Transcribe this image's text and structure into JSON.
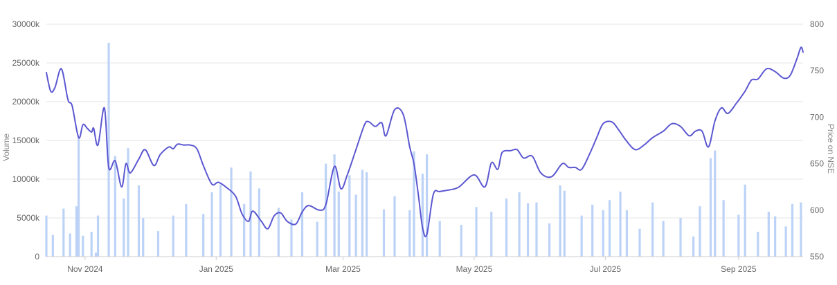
{
  "chart_data": {
    "type": "bar+line",
    "left_axis": {
      "label": "Volume",
      "ticks": [
        "0",
        "5000k",
        "10000k",
        "15000k",
        "20000k",
        "25000k",
        "30000k"
      ],
      "tick_values": [
        0,
        5000,
        10000,
        15000,
        20000,
        25000,
        30000
      ],
      "range": [
        0,
        30000
      ],
      "unit": "k"
    },
    "right_axis": {
      "label": "Price on NSE",
      "ticks": [
        "550",
        "600",
        "650",
        "700",
        "750",
        "800"
      ],
      "tick_values": [
        550,
        600,
        650,
        700,
        750,
        800
      ],
      "range": [
        550,
        800
      ]
    },
    "x_axis": {
      "tick_labels": [
        "Nov 2024",
        "Jan 2025",
        "Mar 2025",
        "May 2025",
        "Jul 2025",
        "Sep 2025"
      ],
      "tick_dates": [
        "2024-11-01",
        "2025-01-01",
        "2025-03-01",
        "2025-05-01",
        "2025-07-01",
        "2025-09-01"
      ],
      "start": "2024-10-14",
      "end": "2025-10-01"
    },
    "grid": "horizontal",
    "legend": "none",
    "colors": {
      "volume_bars": "#bcd3f7",
      "price_line": "#5b57d1",
      "grid": "#e6e6e6"
    },
    "series": [
      {
        "name": "Volume",
        "kind": "bar",
        "axis": "left",
        "points": [
          {
            "date": "2024-10-14",
            "value": 5300
          },
          {
            "date": "2024-10-17",
            "value": 2800
          },
          {
            "date": "2024-10-22",
            "value": 6200
          },
          {
            "date": "2024-10-25",
            "value": 3000
          },
          {
            "date": "2024-10-28",
            "value": 6500
          },
          {
            "date": "2024-10-29",
            "value": 15300
          },
          {
            "date": "2024-10-31",
            "value": 2700
          },
          {
            "date": "2024-11-04",
            "value": 3200
          },
          {
            "date": "2024-11-06",
            "value": 500
          },
          {
            "date": "2024-11-07",
            "value": 5300
          },
          {
            "date": "2024-11-12",
            "value": 27600
          },
          {
            "date": "2024-11-15",
            "value": 13000
          },
          {
            "date": "2024-11-19",
            "value": 7500
          },
          {
            "date": "2024-11-21",
            "value": 14000
          },
          {
            "date": "2024-11-26",
            "value": 9200
          },
          {
            "date": "2024-11-28",
            "value": 5000
          },
          {
            "date": "2024-12-05",
            "value": 3300
          },
          {
            "date": "2024-12-12",
            "value": 5300
          },
          {
            "date": "2024-12-18",
            "value": 6800
          },
          {
            "date": "2024-12-26",
            "value": 5500
          },
          {
            "date": "2024-12-30",
            "value": 8300
          },
          {
            "date": "2025-01-03",
            "value": 9300
          },
          {
            "date": "2025-01-08",
            "value": 11500
          },
          {
            "date": "2025-01-14",
            "value": 6800
          },
          {
            "date": "2025-01-17",
            "value": 11000
          },
          {
            "date": "2025-01-21",
            "value": 8800
          },
          {
            "date": "2025-01-30",
            "value": 6300
          },
          {
            "date": "2025-02-05",
            "value": 4800
          },
          {
            "date": "2025-02-10",
            "value": 8300
          },
          {
            "date": "2025-02-17",
            "value": 4500
          },
          {
            "date": "2025-02-21",
            "value": 12000
          },
          {
            "date": "2025-02-25",
            "value": 13200
          },
          {
            "date": "2025-02-27",
            "value": 8400
          },
          {
            "date": "2025-03-04",
            "value": 10500
          },
          {
            "date": "2025-03-07",
            "value": 8000
          },
          {
            "date": "2025-03-10",
            "value": 11200
          },
          {
            "date": "2025-03-12",
            "value": 10900
          },
          {
            "date": "2025-03-20",
            "value": 6100
          },
          {
            "date": "2025-03-25",
            "value": 7800
          },
          {
            "date": "2025-04-01",
            "value": 6000
          },
          {
            "date": "2025-04-03",
            "value": 13600
          },
          {
            "date": "2025-04-07",
            "value": 10700
          },
          {
            "date": "2025-04-09",
            "value": 13200
          },
          {
            "date": "2025-04-15",
            "value": 4600
          },
          {
            "date": "2025-04-25",
            "value": 4100
          },
          {
            "date": "2025-05-02",
            "value": 6400
          },
          {
            "date": "2025-05-09",
            "value": 5800
          },
          {
            "date": "2025-05-16",
            "value": 7500
          },
          {
            "date": "2025-05-22",
            "value": 8300
          },
          {
            "date": "2025-05-26",
            "value": 6900
          },
          {
            "date": "2025-05-30",
            "value": 7000
          },
          {
            "date": "2025-06-05",
            "value": 4300
          },
          {
            "date": "2025-06-10",
            "value": 9200
          },
          {
            "date": "2025-06-12",
            "value": 8500
          },
          {
            "date": "2025-06-20",
            "value": 5300
          },
          {
            "date": "2025-06-25",
            "value": 6700
          },
          {
            "date": "2025-06-30",
            "value": 6000
          },
          {
            "date": "2025-07-03",
            "value": 7300
          },
          {
            "date": "2025-07-08",
            "value": 8400
          },
          {
            "date": "2025-07-11",
            "value": 6000
          },
          {
            "date": "2025-07-17",
            "value": 3600
          },
          {
            "date": "2025-07-23",
            "value": 7000
          },
          {
            "date": "2025-07-28",
            "value": 4600
          },
          {
            "date": "2025-08-05",
            "value": 5000
          },
          {
            "date": "2025-08-11",
            "value": 2600
          },
          {
            "date": "2025-08-14",
            "value": 6500
          },
          {
            "date": "2025-08-19",
            "value": 12700
          },
          {
            "date": "2025-08-21",
            "value": 13700
          },
          {
            "date": "2025-08-25",
            "value": 7300
          },
          {
            "date": "2025-09-01",
            "value": 5400
          },
          {
            "date": "2025-09-04",
            "value": 9300
          },
          {
            "date": "2025-09-10",
            "value": 3200
          },
          {
            "date": "2025-09-15",
            "value": 5800
          },
          {
            "date": "2025-09-18",
            "value": 5200
          },
          {
            "date": "2025-09-23",
            "value": 3900
          },
          {
            "date": "2025-09-26",
            "value": 6800
          },
          {
            "date": "2025-09-30",
            "value": 7000
          }
        ]
      },
      {
        "name": "Price on NSE",
        "kind": "line",
        "axis": "right",
        "points": [
          {
            "date": "2024-10-14",
            "value": 748
          },
          {
            "date": "2024-10-16",
            "value": 728
          },
          {
            "date": "2024-10-18",
            "value": 732
          },
          {
            "date": "2024-10-21",
            "value": 752
          },
          {
            "date": "2024-10-24",
            "value": 719
          },
          {
            "date": "2024-10-26",
            "value": 712
          },
          {
            "date": "2024-10-29",
            "value": 678
          },
          {
            "date": "2024-10-31",
            "value": 692
          },
          {
            "date": "2024-11-02",
            "value": 688
          },
          {
            "date": "2024-11-04",
            "value": 684
          },
          {
            "date": "2024-11-05",
            "value": 688
          },
          {
            "date": "2024-11-07",
            "value": 670
          },
          {
            "date": "2024-11-10",
            "value": 710
          },
          {
            "date": "2024-11-12",
            "value": 646
          },
          {
            "date": "2024-11-15",
            "value": 653
          },
          {
            "date": "2024-11-18",
            "value": 625
          },
          {
            "date": "2024-11-20",
            "value": 650
          },
          {
            "date": "2024-11-22",
            "value": 640
          },
          {
            "date": "2024-11-26",
            "value": 655
          },
          {
            "date": "2024-11-29",
            "value": 665
          },
          {
            "date": "2024-12-03",
            "value": 648
          },
          {
            "date": "2024-12-06",
            "value": 660
          },
          {
            "date": "2024-12-10",
            "value": 668
          },
          {
            "date": "2024-12-12",
            "value": 666
          },
          {
            "date": "2024-12-14",
            "value": 671
          },
          {
            "date": "2024-12-17",
            "value": 670
          },
          {
            "date": "2024-12-20",
            "value": 670
          },
          {
            "date": "2024-12-23",
            "value": 666
          },
          {
            "date": "2024-12-26",
            "value": 648
          },
          {
            "date": "2024-12-30",
            "value": 628
          },
          {
            "date": "2025-01-02",
            "value": 630
          },
          {
            "date": "2025-01-06",
            "value": 624
          },
          {
            "date": "2025-01-10",
            "value": 615
          },
          {
            "date": "2025-01-13",
            "value": 596
          },
          {
            "date": "2025-01-16",
            "value": 588
          },
          {
            "date": "2025-01-18",
            "value": 599
          },
          {
            "date": "2025-01-22",
            "value": 588
          },
          {
            "date": "2025-01-25",
            "value": 580
          },
          {
            "date": "2025-01-28",
            "value": 594
          },
          {
            "date": "2025-01-31",
            "value": 597
          },
          {
            "date": "2025-02-03",
            "value": 588
          },
          {
            "date": "2025-02-07",
            "value": 585
          },
          {
            "date": "2025-02-10",
            "value": 598
          },
          {
            "date": "2025-02-13",
            "value": 605
          },
          {
            "date": "2025-02-18",
            "value": 600
          },
          {
            "date": "2025-02-21",
            "value": 606
          },
          {
            "date": "2025-02-25",
            "value": 647
          },
          {
            "date": "2025-02-28",
            "value": 623
          },
          {
            "date": "2025-03-03",
            "value": 638
          },
          {
            "date": "2025-03-07",
            "value": 665
          },
          {
            "date": "2025-03-11",
            "value": 692
          },
          {
            "date": "2025-03-13",
            "value": 695
          },
          {
            "date": "2025-03-16",
            "value": 690
          },
          {
            "date": "2025-03-19",
            "value": 694
          },
          {
            "date": "2025-03-21",
            "value": 680
          },
          {
            "date": "2025-03-25",
            "value": 708
          },
          {
            "date": "2025-03-29",
            "value": 703
          },
          {
            "date": "2025-04-01",
            "value": 668
          },
          {
            "date": "2025-04-03",
            "value": 650
          },
          {
            "date": "2025-04-05",
            "value": 617
          },
          {
            "date": "2025-04-07",
            "value": 581
          },
          {
            "date": "2025-04-09",
            "value": 574
          },
          {
            "date": "2025-04-12",
            "value": 617
          },
          {
            "date": "2025-04-15",
            "value": 620
          },
          {
            "date": "2025-04-20",
            "value": 622
          },
          {
            "date": "2025-04-24",
            "value": 625
          },
          {
            "date": "2025-05-01",
            "value": 638
          },
          {
            "date": "2025-05-06",
            "value": 625
          },
          {
            "date": "2025-05-09",
            "value": 651
          },
          {
            "date": "2025-05-12",
            "value": 644
          },
          {
            "date": "2025-05-14",
            "value": 662
          },
          {
            "date": "2025-05-18",
            "value": 664
          },
          {
            "date": "2025-05-21",
            "value": 665
          },
          {
            "date": "2025-05-24",
            "value": 656
          },
          {
            "date": "2025-05-28",
            "value": 658
          },
          {
            "date": "2025-06-01",
            "value": 640
          },
          {
            "date": "2025-06-06",
            "value": 636
          },
          {
            "date": "2025-06-11",
            "value": 650
          },
          {
            "date": "2025-06-14",
            "value": 646
          },
          {
            "date": "2025-06-17",
            "value": 646
          },
          {
            "date": "2025-06-20",
            "value": 644
          },
          {
            "date": "2025-06-24",
            "value": 662
          },
          {
            "date": "2025-06-27",
            "value": 678
          },
          {
            "date": "2025-06-30",
            "value": 693
          },
          {
            "date": "2025-07-04",
            "value": 695
          },
          {
            "date": "2025-07-07",
            "value": 687
          },
          {
            "date": "2025-07-11",
            "value": 674
          },
          {
            "date": "2025-07-15",
            "value": 665
          },
          {
            "date": "2025-07-19",
            "value": 670
          },
          {
            "date": "2025-07-23",
            "value": 678
          },
          {
            "date": "2025-07-28",
            "value": 685
          },
          {
            "date": "2025-08-01",
            "value": 693
          },
          {
            "date": "2025-08-05",
            "value": 690
          },
          {
            "date": "2025-08-09",
            "value": 680
          },
          {
            "date": "2025-08-12",
            "value": 685
          },
          {
            "date": "2025-08-15",
            "value": 685
          },
          {
            "date": "2025-08-18",
            "value": 668
          },
          {
            "date": "2025-08-21",
            "value": 696
          },
          {
            "date": "2025-08-24",
            "value": 710
          },
          {
            "date": "2025-08-27",
            "value": 704
          },
          {
            "date": "2025-08-31",
            "value": 715
          },
          {
            "date": "2025-09-04",
            "value": 728
          },
          {
            "date": "2025-09-07",
            "value": 740
          },
          {
            "date": "2025-09-10",
            "value": 741
          },
          {
            "date": "2025-09-14",
            "value": 752
          },
          {
            "date": "2025-09-18",
            "value": 749
          },
          {
            "date": "2025-09-22",
            "value": 742
          },
          {
            "date": "2025-09-25",
            "value": 745
          },
          {
            "date": "2025-09-28",
            "value": 762
          },
          {
            "date": "2025-09-30",
            "value": 775
          },
          {
            "date": "2025-10-01",
            "value": 770
          }
        ]
      }
    ]
  }
}
